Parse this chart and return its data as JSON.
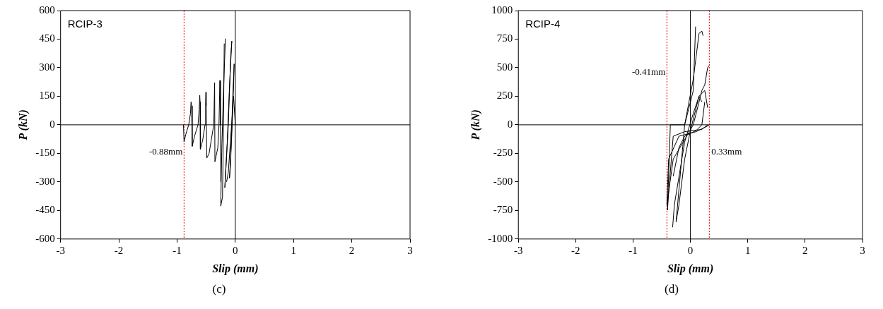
{
  "chart_data": [
    {
      "type": "line",
      "title": "RCIP-3",
      "xlabel": "Slip (mm)",
      "ylabel": "P (kN)",
      "annotations": [
        "(c)"
      ],
      "xlim": [
        -3,
        3
      ],
      "ylim": [
        -600,
        600
      ],
      "xticks": [
        -3,
        -2,
        -1,
        0,
        1,
        2,
        3
      ],
      "yticks": [
        -600,
        -450,
        -300,
        -150,
        0,
        150,
        300,
        450,
        600
      ],
      "grid": false,
      "legend": false,
      "marker": "none",
      "line_style": "solid",
      "series": [
        {
          "color": "#000000",
          "x": [
            -0.89,
            -0.88,
            -0.85,
            -0.8,
            -0.77,
            -0.76,
            -0.75,
            -0.74,
            -0.7,
            -0.64,
            -0.62,
            -0.61,
            -0.605,
            -0.6,
            -0.56,
            -0.52,
            -0.51,
            -0.505,
            -0.5,
            -0.49,
            -0.45,
            -0.37,
            -0.355,
            -0.35,
            -0.3,
            -0.28,
            -0.265,
            -0.255,
            -0.25
          ],
          "values": [
            0,
            -89,
            -50,
            0,
            60,
            120,
            100,
            -113,
            -60,
            0,
            80,
            155,
            120,
            -128,
            -80,
            0,
            120,
            171,
            100,
            -175,
            -150,
            0,
            221,
            -194,
            -120,
            0,
            233,
            0,
            -300
          ]
        },
        {
          "color": "#000000",
          "x": [
            -0.17,
            -0.2,
            -0.23,
            -0.25
          ],
          "values": [
            453,
            200,
            -100,
            -427
          ]
        },
        {
          "color": "#000000",
          "x": [
            -0.25,
            -0.22,
            -0.2,
            -0.19
          ],
          "values": [
            -427,
            -380,
            100,
            427
          ]
        },
        {
          "color": "#000000",
          "x": [
            -0.06,
            -0.1,
            -0.14,
            -0.18
          ],
          "values": [
            440,
            200,
            -100,
            -330
          ]
        },
        {
          "color": "#000000",
          "x": [
            -0.18,
            -0.12,
            -0.08,
            -0.06
          ],
          "values": [
            -330,
            0,
            350,
            440
          ]
        },
        {
          "color": "#000000",
          "x": [
            -0.02,
            -0.05,
            -0.08,
            -0.1
          ],
          "values": [
            320,
            100,
            -200,
            -280
          ]
        },
        {
          "color": "#000000",
          "x": [
            -0.1,
            -0.06,
            -0.03,
            -0.02
          ],
          "values": [
            -280,
            -50,
            200,
            320
          ]
        },
        {
          "color": "#000000",
          "x": [
            0,
            -0.03,
            -0.12,
            -0.15
          ],
          "values": [
            0,
            150,
            -250,
            -300
          ]
        }
      ],
      "ref_lines": [
        {
          "axis": "x",
          "value": -0.88,
          "label": "-0.88mm",
          "color": "#ff0000",
          "line_style": "dotted"
        },
        {
          "axis": "x",
          "value": 0,
          "color": "#000000",
          "line_style": "solid"
        },
        {
          "axis": "y",
          "value": 0,
          "color": "#000000",
          "line_style": "solid"
        }
      ]
    },
    {
      "type": "line",
      "title": "RCIP-4",
      "xlabel": "Slip (mm)",
      "ylabel": "P (kN)",
      "annotations": [
        "(d)"
      ],
      "xlim": [
        -3,
        3
      ],
      "ylim": [
        -1000,
        1000
      ],
      "xticks": [
        -3,
        -2,
        -1,
        0,
        1,
        2,
        3
      ],
      "yticks": [
        -1000,
        -750,
        -500,
        -250,
        0,
        250,
        500,
        750,
        1000
      ],
      "grid": false,
      "legend": false,
      "marker": "none",
      "line_style": "solid",
      "series": [
        {
          "color": "#000000",
          "x": [
            -0.31,
            -0.28,
            -0.1,
            0.05,
            0.15,
            0.25,
            0.3
          ],
          "values": [
            -897,
            -700,
            -150,
            100,
            250,
            300,
            150
          ]
        },
        {
          "color": "#000000",
          "x": [
            0.3,
            0.2,
            -0.1,
            -0.3,
            -0.38,
            -0.4
          ],
          "values": [
            0,
            -40,
            -60,
            -100,
            -600,
            -748
          ]
        },
        {
          "color": "#000000",
          "x": [
            -0.4,
            -0.35,
            -0.1,
            0.05,
            0.09
          ],
          "values": [
            -748,
            0,
            0,
            300,
            860
          ]
        },
        {
          "color": "#000000",
          "x": [
            0.33,
            0.3,
            0.1,
            -0.2,
            -0.38,
            -0.41
          ],
          "values": [
            0,
            -10,
            -60,
            -100,
            -300,
            -700
          ]
        },
        {
          "color": "#000000",
          "x": [
            -0.41,
            -0.3,
            0.05,
            0.2,
            0.25,
            0.3,
            0.33
          ],
          "values": [
            -700,
            -300,
            0,
            300,
            350,
            500,
            520
          ]
        },
        {
          "color": "#000000",
          "x": [
            0.22,
            0.2,
            0.15,
            0.05,
            -0.1,
            -0.25
          ],
          "values": [
            780,
            820,
            800,
            400,
            0,
            -850
          ]
        },
        {
          "color": "#000000",
          "x": [
            -0.25,
            -0.2,
            -0.1,
            0,
            0.1,
            0.15,
            0.2
          ],
          "values": [
            -850,
            -700,
            -300,
            -50,
            150,
            250,
            200
          ]
        },
        {
          "color": "#000000",
          "x": [
            0.25,
            0.2,
            0.1,
            -0.1,
            -0.2,
            -0.3
          ],
          "values": [
            200,
            0,
            -50,
            -100,
            -200,
            -450
          ]
        }
      ],
      "ref_lines": [
        {
          "axis": "x",
          "value": -0.41,
          "label": "-0.41mm",
          "color": "#ff0000",
          "line_style": "dotted"
        },
        {
          "axis": "x",
          "value": 0.33,
          "label": "0.33mm",
          "color": "#ff0000",
          "line_style": "dotted"
        },
        {
          "axis": "x",
          "value": 0,
          "color": "#000000",
          "line_style": "solid"
        },
        {
          "axis": "y",
          "value": 0,
          "color": "#000000",
          "line_style": "solid"
        }
      ]
    }
  ]
}
